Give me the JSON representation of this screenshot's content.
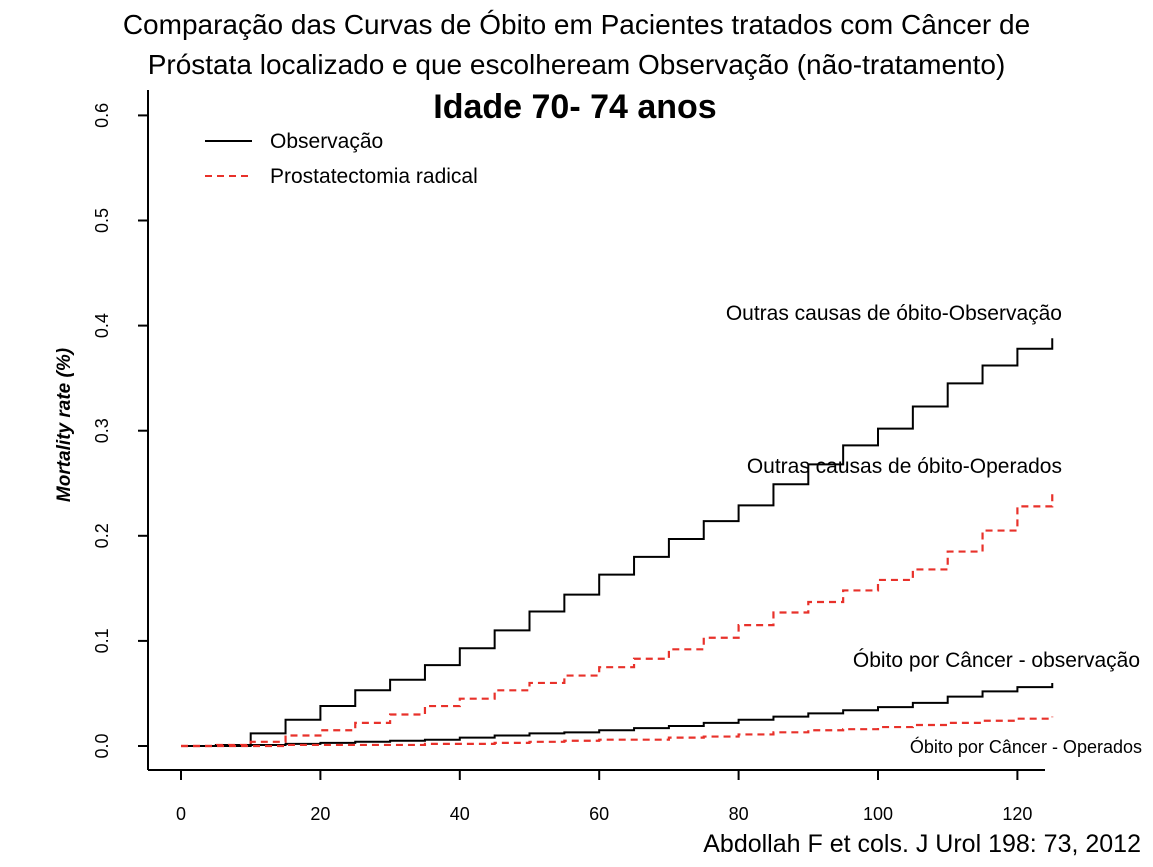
{
  "title_lines": [
    "Comparação das Curvas de Óbito em Pacientes tratados com Câncer de",
    "Próstata localizado e que escolheream Observação (não-tratamento)"
  ],
  "citation": "Abdollah F et cols. J Urol 198: 73, 2012",
  "chart_data": {
    "type": "line",
    "subtitle": "Idade 70- 74 anos",
    "ylabel": "Mortality rate (%)",
    "xlabel": "",
    "xlim": [
      0,
      125
    ],
    "ylim": [
      0,
      0.6
    ],
    "x_ticks": [
      "0",
      "20",
      "40",
      "60",
      "80",
      "100",
      "120"
    ],
    "y_ticks": [
      "0.0",
      "0.1",
      "0.2",
      "0.3",
      "0.4",
      "0.5",
      "0.6"
    ],
    "legend": {
      "placement": "top-left",
      "entries": [
        {
          "name": "Observação",
          "style": "solid",
          "color": "#000000"
        },
        {
          "name": "Prostatectomia radical",
          "style": "dashed",
          "color": "#e8312a"
        }
      ]
    },
    "series": [
      {
        "name": "Outras causas de óbito-Observação",
        "legend_group": "Observação",
        "style": "solid",
        "color": "#000000",
        "x": [
          0,
          5,
          10,
          15,
          20,
          25,
          30,
          35,
          40,
          45,
          50,
          55,
          60,
          65,
          70,
          75,
          80,
          85,
          90,
          95,
          100,
          105,
          110,
          115,
          120,
          125
        ],
        "y": [
          0,
          0.001,
          0.012,
          0.025,
          0.038,
          0.053,
          0.063,
          0.077,
          0.093,
          0.11,
          0.128,
          0.144,
          0.163,
          0.18,
          0.197,
          0.214,
          0.229,
          0.249,
          0.268,
          0.286,
          0.302,
          0.323,
          0.345,
          0.362,
          0.378,
          0.388
        ]
      },
      {
        "name": "Outras causas de óbito-Operados",
        "legend_group": "Prostatectomia radical",
        "style": "dashed",
        "color": "#e8312a",
        "x": [
          0,
          5,
          10,
          15,
          20,
          25,
          30,
          35,
          40,
          45,
          50,
          55,
          60,
          65,
          70,
          75,
          80,
          85,
          90,
          95,
          100,
          105,
          110,
          115,
          120,
          125
        ],
        "y": [
          0,
          0.001,
          0.004,
          0.01,
          0.015,
          0.022,
          0.03,
          0.038,
          0.045,
          0.053,
          0.06,
          0.067,
          0.075,
          0.083,
          0.092,
          0.103,
          0.115,
          0.127,
          0.137,
          0.148,
          0.158,
          0.168,
          0.185,
          0.205,
          0.228,
          0.244
        ]
      },
      {
        "name": "Óbito por Câncer - observação",
        "legend_group": "Observação",
        "style": "solid",
        "color": "#000000",
        "x": [
          0,
          5,
          10,
          15,
          20,
          25,
          30,
          35,
          40,
          45,
          50,
          55,
          60,
          65,
          70,
          75,
          80,
          85,
          90,
          95,
          100,
          105,
          110,
          115,
          120,
          125
        ],
        "y": [
          0,
          0.0,
          0.001,
          0.002,
          0.003,
          0.004,
          0.005,
          0.006,
          0.008,
          0.01,
          0.012,
          0.013,
          0.015,
          0.017,
          0.019,
          0.022,
          0.025,
          0.028,
          0.031,
          0.034,
          0.037,
          0.041,
          0.047,
          0.052,
          0.056,
          0.06
        ]
      },
      {
        "name": "Óbito por Câncer - Operados",
        "legend_group": "Prostatectomia radical",
        "style": "dashed",
        "color": "#e8312a",
        "x": [
          0,
          5,
          10,
          15,
          20,
          25,
          30,
          35,
          40,
          45,
          50,
          55,
          60,
          65,
          70,
          75,
          80,
          85,
          90,
          95,
          100,
          105,
          110,
          115,
          120,
          125
        ],
        "y": [
          0,
          0.0,
          0.0,
          0.001,
          0.001,
          0.001,
          0.001,
          0.002,
          0.002,
          0.003,
          0.004,
          0.005,
          0.006,
          0.006,
          0.008,
          0.009,
          0.011,
          0.013,
          0.015,
          0.016,
          0.018,
          0.02,
          0.022,
          0.024,
          0.026,
          0.028
        ]
      }
    ],
    "annotations": [
      {
        "text": "Outras causas de óbito-Observação",
        "series": 0
      },
      {
        "text": "Outras causas de óbito-Operados",
        "series": 1
      },
      {
        "text": "Óbito por Câncer - observação",
        "series": 2
      },
      {
        "text": "Óbito por Câncer - Operados",
        "series": 3
      }
    ]
  }
}
